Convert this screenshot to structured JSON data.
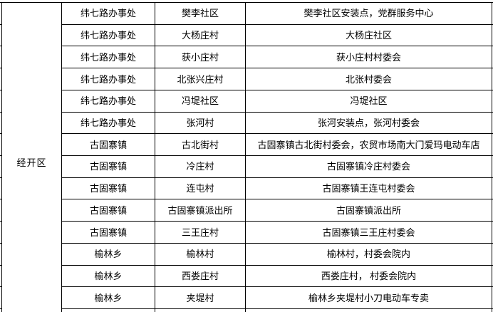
{
  "region_label": "经开区",
  "table": {
    "rows": [
      {
        "office": "纬七路办事处",
        "village": "樊李社区",
        "address": "樊李社区安装点，党群服务中心"
      },
      {
        "office": "纬七路办事处",
        "village": "大杨庄村",
        "address": "大杨庄社区"
      },
      {
        "office": "纬七路办事处",
        "village": "获小庄村",
        "address": "获小庄村村委会"
      },
      {
        "office": "纬七路办事处",
        "village": "北张兴庄村",
        "address": "北张村委会"
      },
      {
        "office": "纬七路办事处",
        "village": "冯堤社区",
        "address": "冯堤社区"
      },
      {
        "office": "纬七路办事处",
        "village": "张河村",
        "address": "张河安装点，张河村委会"
      },
      {
        "office": "古固寨镇",
        "village": "古北街村",
        "address": "古固寨镇古北街村委会，农贸市场南大门爱玛电动车店"
      },
      {
        "office": "古固寨镇",
        "village": "冷庄村",
        "address": "古固寨镇冷庄村委会"
      },
      {
        "office": "古固寨镇",
        "village": "连屯村",
        "address": "古固寨镇王连屯村委会"
      },
      {
        "office": "古固寨镇",
        "village": "古固寨镇派出所",
        "address": "古固寨镇派出所"
      },
      {
        "office": "古固寨镇",
        "village": "三王庄村",
        "address": "古固寨镇三王庄村委会"
      },
      {
        "office": "榆林乡",
        "village": "榆林村",
        "address": "榆林村，村委会院内"
      },
      {
        "office": "榆林乡",
        "village": "西娄庄村",
        "address": "西娄庄村， 村委会院内"
      },
      {
        "office": "榆林乡",
        "village": "夹堤村",
        "address": "榆林乡夹堤村小刀电动车专卖"
      }
    ]
  },
  "colors": {
    "border": "#000000",
    "background": "#ffffff",
    "text": "#000000"
  }
}
